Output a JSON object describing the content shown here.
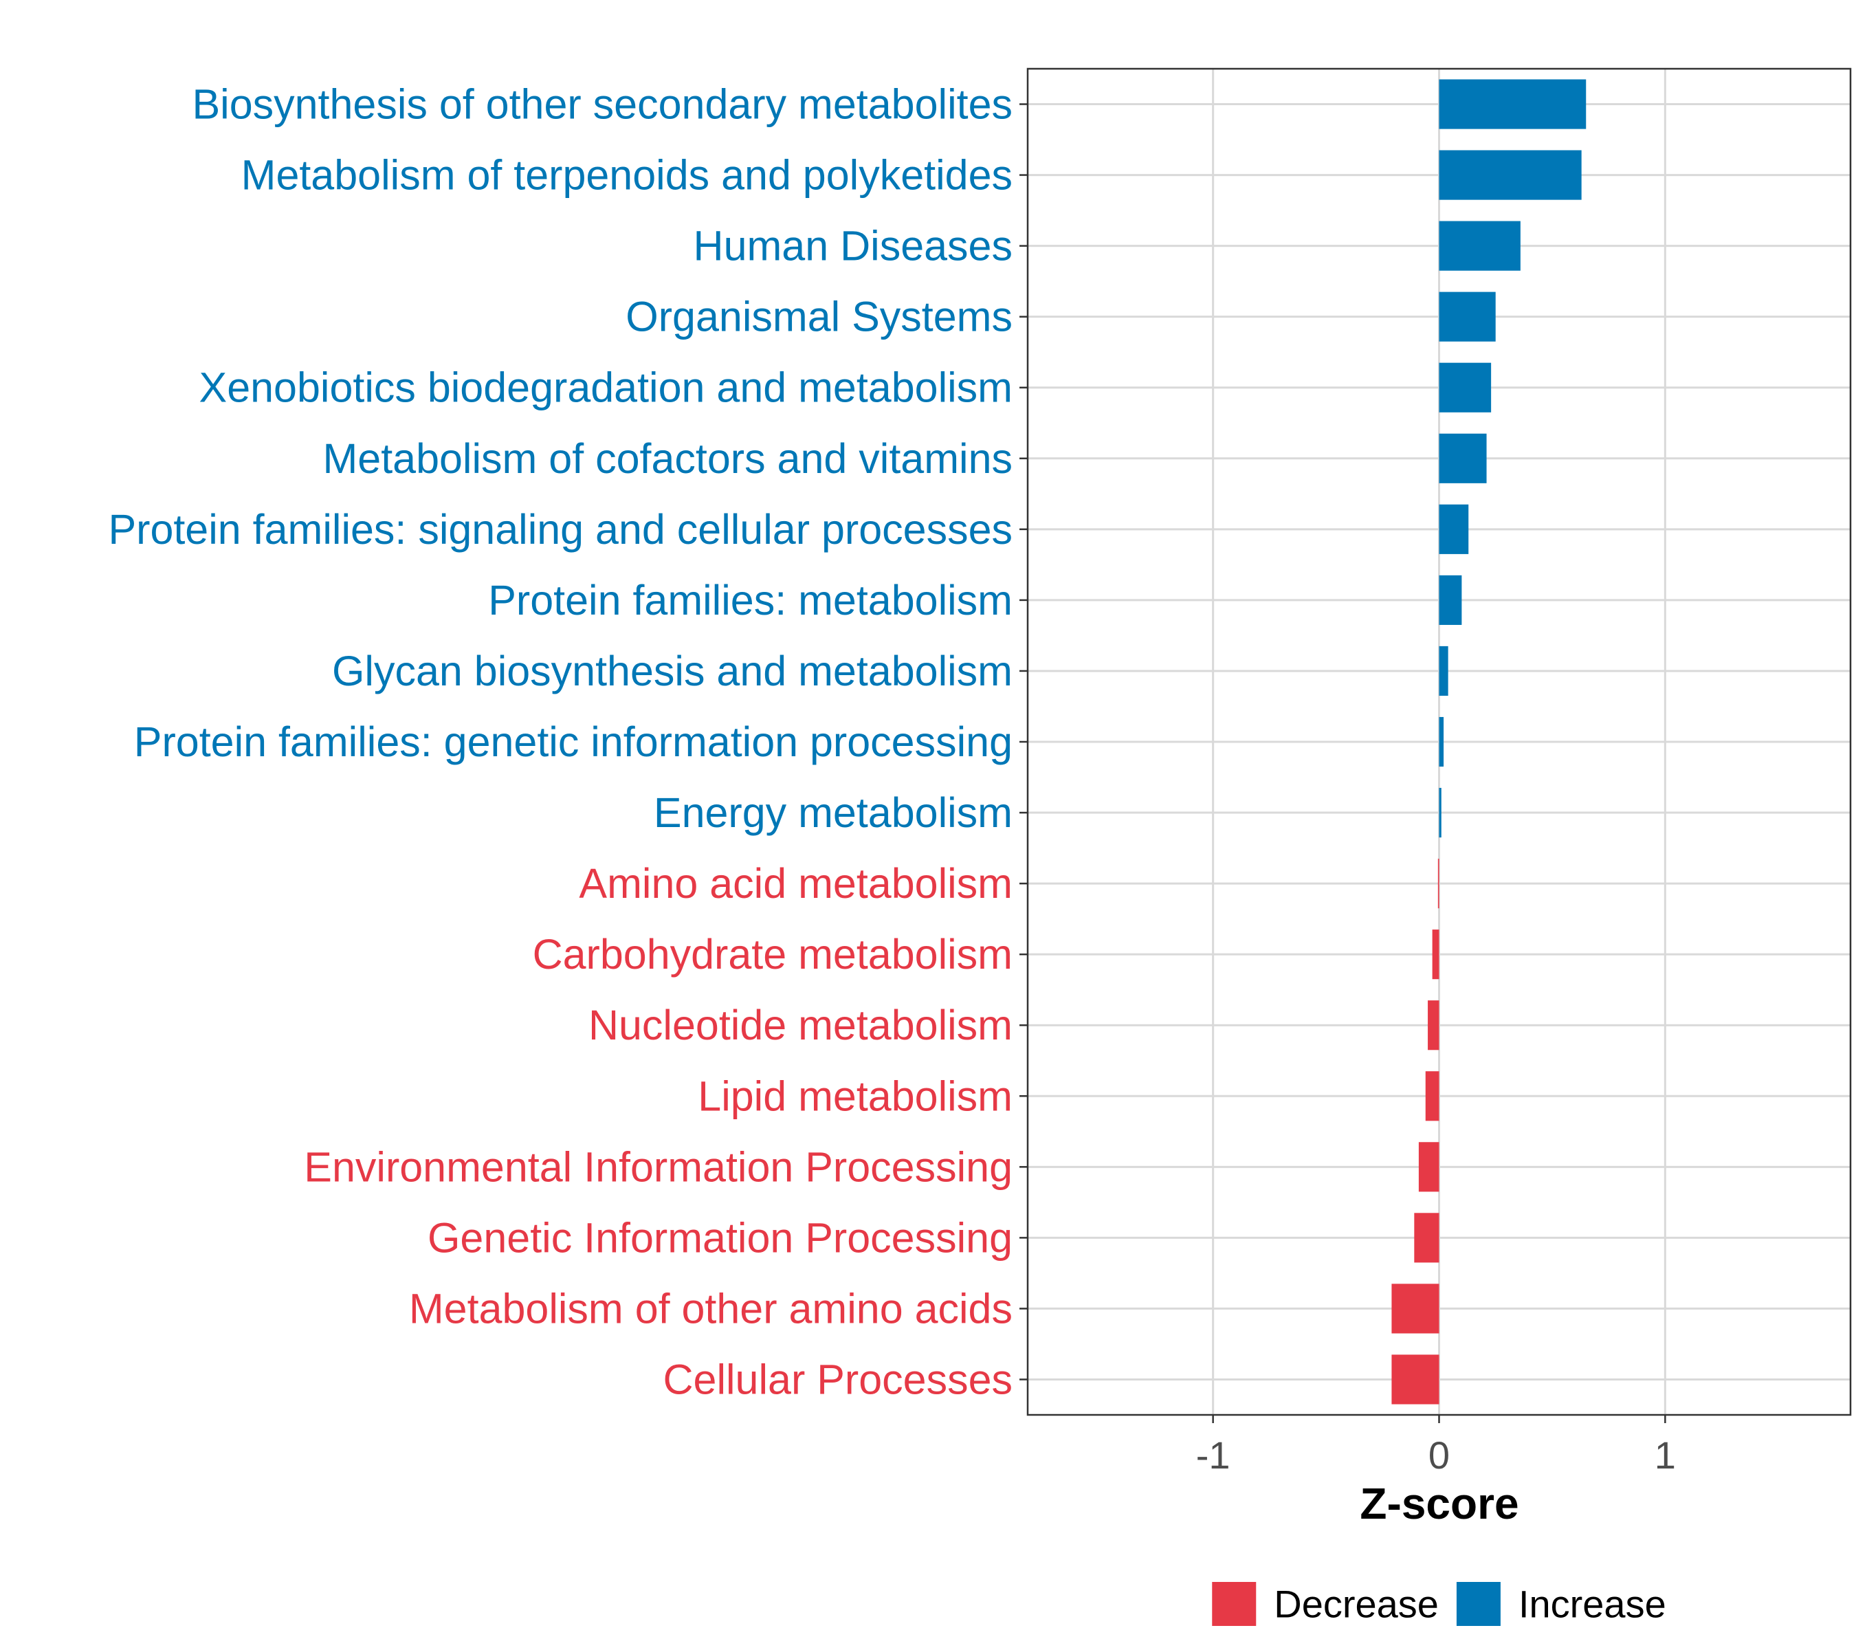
{
  "chart_data": {
    "type": "bar",
    "orientation": "horizontal",
    "title": "",
    "xlabel": "Z-score",
    "ylabel": "",
    "xlim": [
      -1.82,
      1.82
    ],
    "xticks": [
      {
        "value": -1,
        "label": "-1"
      },
      {
        "value": 0,
        "label": "0"
      },
      {
        "value": 1,
        "label": "1"
      }
    ],
    "grid": true,
    "legend_position": "bottom",
    "legend": [
      {
        "name": "Decrease",
        "color": "#e63946"
      },
      {
        "name": "Increase",
        "color": "#0077b6"
      }
    ],
    "colors": {
      "Decrease": "#e63946",
      "Increase": "#0077b6"
    },
    "bars": [
      {
        "category": "Biosynthesis of other secondary metabolites",
        "value": 0.65,
        "group": "Increase"
      },
      {
        "category": "Metabolism of terpenoids and polyketides",
        "value": 0.63,
        "group": "Increase"
      },
      {
        "category": "Human Diseases",
        "value": 0.36,
        "group": "Increase"
      },
      {
        "category": "Organismal Systems",
        "value": 0.25,
        "group": "Increase"
      },
      {
        "category": "Xenobiotics biodegradation and metabolism",
        "value": 0.23,
        "group": "Increase"
      },
      {
        "category": "Metabolism of cofactors and vitamins",
        "value": 0.21,
        "group": "Increase"
      },
      {
        "category": "Protein families: signaling and cellular processes",
        "value": 0.13,
        "group": "Increase"
      },
      {
        "category": "Protein families: metabolism",
        "value": 0.1,
        "group": "Increase"
      },
      {
        "category": "Glycan biosynthesis and metabolism",
        "value": 0.04,
        "group": "Increase"
      },
      {
        "category": "Protein families: genetic information processing",
        "value": 0.02,
        "group": "Increase"
      },
      {
        "category": "Energy metabolism",
        "value": 0.01,
        "group": "Increase"
      },
      {
        "category": "Amino acid metabolism",
        "value": -0.005,
        "group": "Decrease"
      },
      {
        "category": "Carbohydrate metabolism",
        "value": -0.03,
        "group": "Decrease"
      },
      {
        "category": "Nucleotide metabolism",
        "value": -0.05,
        "group": "Decrease"
      },
      {
        "category": "Lipid metabolism",
        "value": -0.06,
        "group": "Decrease"
      },
      {
        "category": "Environmental Information Processing",
        "value": -0.09,
        "group": "Decrease"
      },
      {
        "category": "Genetic Information Processing",
        "value": -0.11,
        "group": "Decrease"
      },
      {
        "category": "Metabolism of other amino acids",
        "value": -0.21,
        "group": "Decrease"
      },
      {
        "category": "Cellular Processes",
        "value": -0.21,
        "group": "Decrease"
      }
    ]
  }
}
